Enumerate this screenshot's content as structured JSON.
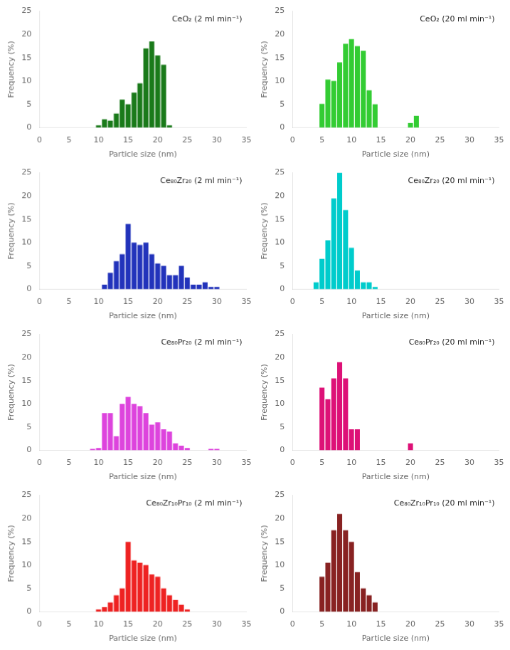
{
  "chart_data": [
    {
      "type": "bar",
      "annotation": "CeO₂ (2 ml min⁻¹)",
      "x_label": "Particle size (nm)",
      "y_label": "Frequency (%)",
      "x": [
        10,
        11,
        12,
        13,
        14,
        15,
        16,
        17,
        18,
        19,
        20,
        21,
        22
      ],
      "values": [
        0.5,
        1.8,
        1.5,
        3.0,
        6.0,
        5.0,
        7.5,
        9.5,
        17.0,
        18.5,
        15.5,
        13.5,
        0.5
      ],
      "color": "#1a7a1a",
      "xlim": [
        0,
        35
      ],
      "xticks": [
        0,
        5,
        10,
        15,
        20,
        25,
        30,
        35
      ],
      "ylim": [
        0,
        25
      ],
      "yticks": [
        0,
        5,
        10,
        15,
        20,
        25
      ],
      "grid": false
    },
    {
      "type": "bar",
      "annotation": "CeO₂ (20 ml min⁻¹)",
      "x_label": "Particle size (nm)",
      "y_label": "Frequency (%)",
      "x": [
        5,
        6,
        7,
        8,
        9,
        10,
        11,
        12,
        13,
        14,
        20,
        21
      ],
      "values": [
        5.1,
        10.3,
        10.0,
        14.0,
        18.0,
        19.0,
        17.5,
        16.5,
        8.0,
        5.0,
        1.0,
        2.5
      ],
      "color": "#33cc33",
      "xlim": [
        0,
        35
      ],
      "xticks": [
        0,
        5,
        10,
        15,
        20,
        25,
        30,
        35
      ],
      "ylim": [
        0,
        25
      ],
      "yticks": [
        0,
        5,
        10,
        15,
        20,
        25
      ],
      "grid": false
    },
    {
      "type": "bar",
      "annotation": "Ce₈₀Zr₂₀ (2 ml min⁻¹)",
      "x_label": "Particle size (nm)",
      "y_label": "Frequency (%)",
      "x": [
        11,
        12,
        13,
        14,
        15,
        16,
        17,
        18,
        19,
        20,
        21,
        22,
        23,
        24,
        25,
        26,
        27,
        28,
        29,
        30
      ],
      "values": [
        1.0,
        3.5,
        6.0,
        7.5,
        14.0,
        10.0,
        9.5,
        10.0,
        7.5,
        5.5,
        5.0,
        3.0,
        3.0,
        5.0,
        2.5,
        1.0,
        1.0,
        1.5,
        0.5,
        0.5
      ],
      "color": "#2233bb",
      "xlim": [
        0,
        35
      ],
      "xticks": [
        0,
        5,
        10,
        15,
        20,
        25,
        30,
        35
      ],
      "ylim": [
        0,
        25
      ],
      "yticks": [
        0,
        5,
        10,
        15,
        20,
        25
      ],
      "grid": false
    },
    {
      "type": "bar",
      "annotation": "Ce₈₀Zr₂₀ (20 ml min⁻¹)",
      "x_label": "Particle size (nm)",
      "y_label": "Frequency (%)",
      "x": [
        4,
        5,
        6,
        7,
        8,
        9,
        10,
        11,
        12,
        13,
        14
      ],
      "values": [
        1.5,
        6.5,
        10.5,
        19.5,
        25.0,
        17.0,
        8.9,
        4.0,
        1.5,
        1.5,
        0.5
      ],
      "color": "#00cccc",
      "xlim": [
        0,
        35
      ],
      "xticks": [
        0,
        5,
        10,
        15,
        20,
        25,
        30,
        35
      ],
      "ylim": [
        0,
        25
      ],
      "yticks": [
        0,
        5,
        10,
        15,
        20,
        25
      ],
      "grid": false
    },
    {
      "type": "bar",
      "annotation": "Ce₈₀Pr₂₀ (2 ml min⁻¹)",
      "x_label": "Particle size (nm)",
      "y_label": "Frequency (%)",
      "x": [
        9,
        10,
        11,
        12,
        13,
        14,
        15,
        16,
        17,
        18,
        19,
        20,
        21,
        22,
        23,
        24,
        25,
        29,
        30
      ],
      "values": [
        0.3,
        0.5,
        8.0,
        8.0,
        3.0,
        10.0,
        11.5,
        10.0,
        9.5,
        8.0,
        5.5,
        6.0,
        4.5,
        4.0,
        1.5,
        1.0,
        0.5,
        0.3,
        0.3
      ],
      "color": "#dd44dd",
      "xlim": [
        0,
        35
      ],
      "xticks": [
        0,
        5,
        10,
        15,
        20,
        25,
        30,
        35
      ],
      "ylim": [
        0,
        25
      ],
      "yticks": [
        0,
        5,
        10,
        15,
        20,
        25
      ],
      "grid": false
    },
    {
      "type": "bar",
      "annotation": "Ce₈₀Pr₂₀ (20 ml min⁻¹)",
      "x_label": "Particle size (nm)",
      "y_label": "Frequency (%)",
      "x": [
        5,
        6,
        7,
        8,
        9,
        10,
        11,
        20
      ],
      "values": [
        13.5,
        11.0,
        15.5,
        19.0,
        15.5,
        4.5,
        4.5,
        1.5
      ],
      "color": "#dd1177",
      "xlim": [
        0,
        35
      ],
      "xticks": [
        0,
        5,
        10,
        15,
        20,
        25,
        30,
        35
      ],
      "ylim": [
        0,
        25
      ],
      "yticks": [
        0,
        5,
        10,
        15,
        20,
        25
      ],
      "grid": false
    },
    {
      "type": "bar",
      "annotation": "Ce₈₀Zr₁₀Pr₁₀ (2 ml min⁻¹)",
      "x_label": "Particle size (nm)",
      "y_label": "Frequency (%)",
      "x": [
        10,
        11,
        12,
        13,
        14,
        15,
        16,
        17,
        18,
        19,
        20,
        21,
        22,
        23,
        24,
        25
      ],
      "values": [
        0.5,
        1.0,
        2.0,
        3.5,
        5.0,
        15.0,
        11.0,
        10.5,
        10.0,
        8.0,
        7.5,
        5.0,
        3.5,
        2.5,
        1.5,
        0.5
      ],
      "color": "#ee2222",
      "xlim": [
        0,
        35
      ],
      "xticks": [
        0,
        5,
        10,
        15,
        20,
        25,
        30,
        35
      ],
      "ylim": [
        0,
        25
      ],
      "yticks": [
        0,
        5,
        10,
        15,
        20,
        25
      ],
      "grid": false
    },
    {
      "type": "bar",
      "annotation": "Ce₈₀Zr₁₀Pr₁₀ (20 ml min⁻¹)",
      "x_label": "Particle size (nm)",
      "y_label": "Frequency (%)",
      "x": [
        5,
        6,
        7,
        8,
        9,
        10,
        11,
        12,
        13,
        14
      ],
      "values": [
        7.5,
        10.5,
        17.5,
        21.0,
        17.5,
        15.0,
        8.5,
        5.0,
        3.5,
        2.0
      ],
      "color": "#882222",
      "xlim": [
        0,
        35
      ],
      "xticks": [
        0,
        5,
        10,
        15,
        20,
        25,
        30,
        35
      ],
      "ylim": [
        0,
        25
      ],
      "yticks": [
        0,
        5,
        10,
        15,
        20,
        25
      ],
      "grid": false
    }
  ]
}
